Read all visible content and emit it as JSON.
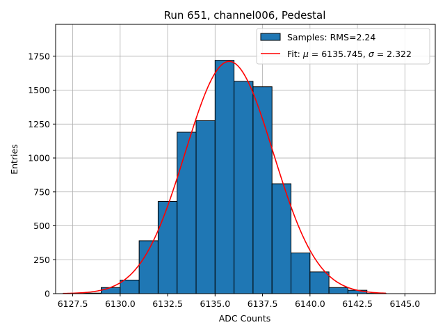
{
  "chart_data": {
    "type": "bar",
    "title": "Run 651, channel006, Pedestal",
    "xlabel": "ADC Counts",
    "ylabel": "Entries",
    "xlim": [
      6126.6,
      6146.6
    ],
    "ylim": [
      0,
      1985
    ],
    "grid": true,
    "x_ticks": [
      6127.5,
      6130.0,
      6132.5,
      6135.0,
      6137.5,
      6140.0,
      6142.5,
      6145.0
    ],
    "x_tick_labels": [
      "6127.5",
      "6130.0",
      "6132.5",
      "6135.0",
      "6137.5",
      "6140.0",
      "6142.5",
      "6145.0"
    ],
    "y_ticks": [
      0,
      250,
      500,
      750,
      1000,
      1250,
      1500,
      1750
    ],
    "y_tick_labels": [
      "0",
      "250",
      "500",
      "750",
      "1000",
      "1250",
      "1500",
      "1750"
    ],
    "histogram": {
      "name": "Samples: RMS=2.24",
      "color": "#1f77b4",
      "edge_color": "#000000",
      "bin_edges": [
        6127,
        6128,
        6129,
        6130,
        6131,
        6132,
        6133,
        6134,
        6135,
        6136,
        6137,
        6138,
        6139,
        6140,
        6141,
        6142,
        6143,
        6144,
        6145,
        6146
      ],
      "counts": [
        2,
        4,
        45,
        100,
        390,
        680,
        1190,
        1275,
        1720,
        1565,
        1525,
        810,
        300,
        160,
        45,
        25,
        2,
        0,
        0
      ]
    },
    "fit": {
      "name": "Fit: μ = 6135.745, σ = 2.322",
      "label_parts": {
        "prefix": "Fit: ",
        "mu_symbol": "μ",
        "mid": " = 6135.745, ",
        "sigma_symbol": "σ",
        "suffix": " = 2.322"
      },
      "color": "#ff0000",
      "type": "gaussian",
      "mu": 6135.745,
      "sigma": 2.322,
      "amplitude": 1712,
      "x_range": [
        6127.0,
        6144.0
      ]
    },
    "legend_position": "upper right"
  }
}
